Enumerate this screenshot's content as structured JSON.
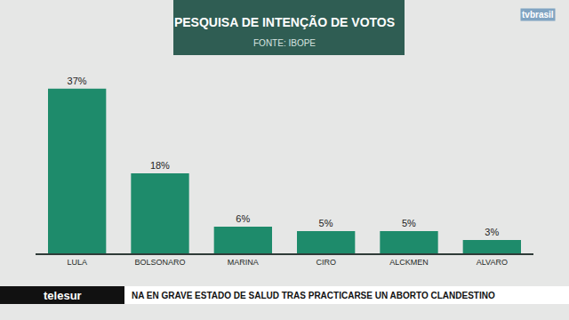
{
  "chart_data": {
    "type": "bar",
    "title": "PESQUISA DE INTENÇÃO DE VOTOS",
    "subtitle": "FONTE: IBOPE",
    "categories": [
      "LULA",
      "BOLSONARO",
      "MARINA",
      "CIRO",
      "ALCKMEN",
      "ALVARO"
    ],
    "values": [
      37,
      18,
      6,
      5,
      5,
      3
    ],
    "value_labels": [
      "37%",
      "18%",
      "6%",
      "5%",
      "5%",
      "3%"
    ],
    "color": "#1e8b6b",
    "data_labels": true,
    "tick_labels": "x",
    "grid": false
  },
  "overlay": {
    "logo": "tvbrasil",
    "channel": "telesur",
    "ticker": "NA EN GRAVE ESTADO DE SALUD TRAS PRACTICARSE UN ABORTO CLANDESTINO"
  }
}
